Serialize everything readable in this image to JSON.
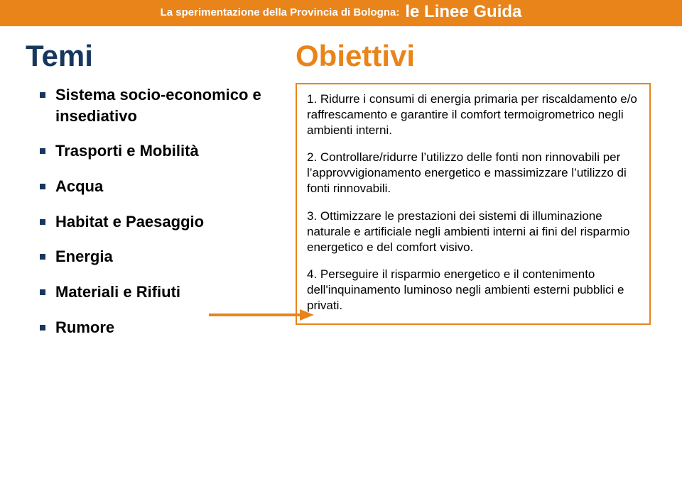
{
  "colors": {
    "orange": "#e9841a",
    "navy": "#17375e",
    "bullet": "#17375e",
    "box_border": "#e9841a",
    "arrow": "#e9841a",
    "white": "#ffffff",
    "black": "#000000"
  },
  "header": {
    "prefix": "La sperimentazione della Provincia di Bologna:",
    "suffix": "le Linee Guida"
  },
  "left": {
    "title": "Temi",
    "items": [
      "Sistema socio-economico e insediativo",
      "Trasporti e Mobilità",
      "Acqua",
      "Habitat e Paesaggio",
      "Energia",
      "Materiali e Rifiuti",
      "Rumore"
    ]
  },
  "right": {
    "title": "Obiettivi",
    "objectives": [
      "1. Ridurre i consumi di energia primaria per riscaldamento e/o raffrescamento e garantire il comfort termoigrometrico negli ambienti interni.",
      "2. Controllare/ridurre l’utilizzo delle fonti non rinnovabili per l’approvvigionamento energetico e massimizzare l’utilizzo di fonti rinnovabili.",
      "3. Ottimizzare le prestazioni dei sistemi di illuminazione naturale e artificiale negli ambienti interni ai fini del risparmio energetico e del comfort visivo.",
      "4. Perseguire il risparmio energetico e il contenimento dell'inquinamento luminoso negli ambienti esterni pubblici e privati."
    ]
  }
}
